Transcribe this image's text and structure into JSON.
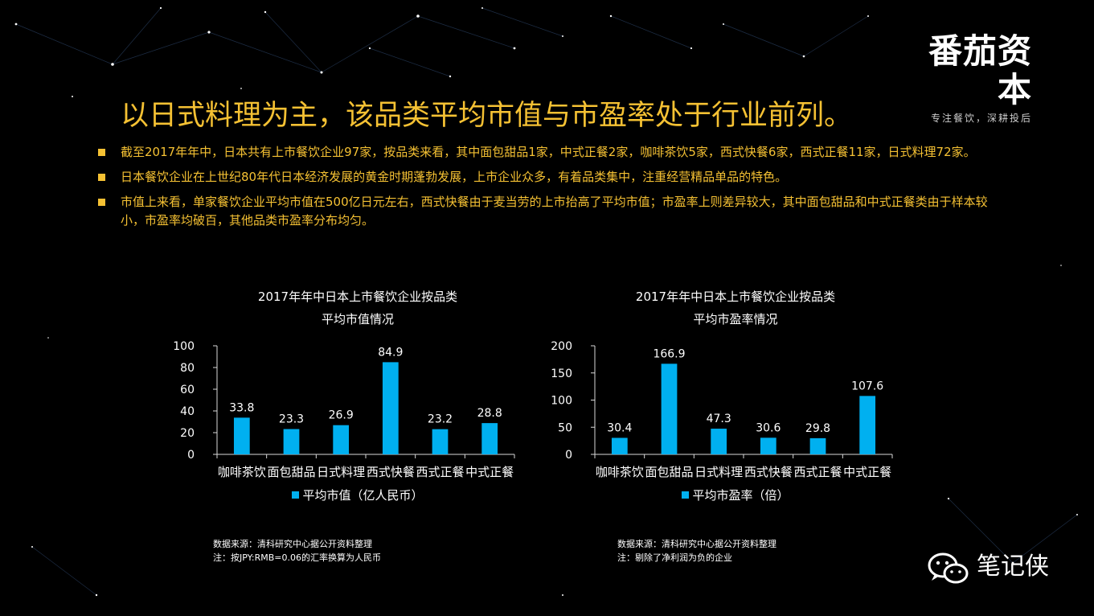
{
  "brand": {
    "name": "番茄资本",
    "slogan": "专注餐饮，深耕投后"
  },
  "headline": "以日式料理为主，该品类平均市值与市盈率处于行业前列。",
  "bullets": [
    "截至2017年年中，日本共有上市餐饮企业97家，按品类来看，其中面包甜品1家，中式正餐2家，咖啡茶饮5家，西式快餐6家，西式正餐11家，日式料理72家。",
    "日本餐饮企业在上世纪80年代日本经济发展的黄金时期蓬勃发展，上市企业众多，有着品类集中，注重经营精品单品的特色。",
    "市值上来看，单家餐饮企业平均市值在500亿日元左右，西式快餐由于麦当劳的上市抬高了平均市值；市盈率上则差异较大，其中面包甜品和中式正餐类由于样本较小，市盈率均破百，其他品类市盈率分布均匀。"
  ],
  "colors": {
    "accent": "#f5c133",
    "bar": "#00b0f0",
    "background": "#000000"
  },
  "chart_data": [
    {
      "type": "bar",
      "title_line1": "2017年年中日本上市餐饮企业按品类",
      "title_line2": "平均市值情况",
      "categories": [
        "咖啡茶饮",
        "面包甜品",
        "日式料理",
        "西式快餐",
        "西式正餐",
        "中式正餐"
      ],
      "series": [
        {
          "name": "平均市值（亿人民币）",
          "values": [
            33.8,
            23.3,
            26.9,
            84.9,
            23.2,
            28.8
          ]
        }
      ],
      "ylim": [
        0,
        100
      ],
      "yticks": [
        0,
        20,
        40,
        60,
        80,
        100
      ],
      "grid": false,
      "legend": "bottom"
    },
    {
      "type": "bar",
      "title_line1": "2017年年中日本上市餐饮企业按品类",
      "title_line2": "平均市盈率情况",
      "categories": [
        "咖啡茶饮",
        "面包甜品",
        "日式料理",
        "西式快餐",
        "西式正餐",
        "中式正餐"
      ],
      "series": [
        {
          "name": "平均市盈率（倍）",
          "values": [
            30.4,
            166.9,
            47.3,
            30.6,
            29.8,
            107.6
          ]
        }
      ],
      "ylim": [
        0,
        200
      ],
      "yticks": [
        0,
        50,
        100,
        150,
        200
      ],
      "grid": false,
      "legend": "bottom"
    }
  ],
  "footnotes": {
    "left": [
      "数据来源：清科研究中心据公开资料整理",
      "注：按JPY:RMB=0.06的汇率换算为人民币"
    ],
    "right": [
      "数据来源：清科研究中心据公开资料整理",
      "注：剔除了净利润为负的企业"
    ]
  },
  "watermark": {
    "text": "笔记侠",
    "icon": "wechat-icon"
  }
}
